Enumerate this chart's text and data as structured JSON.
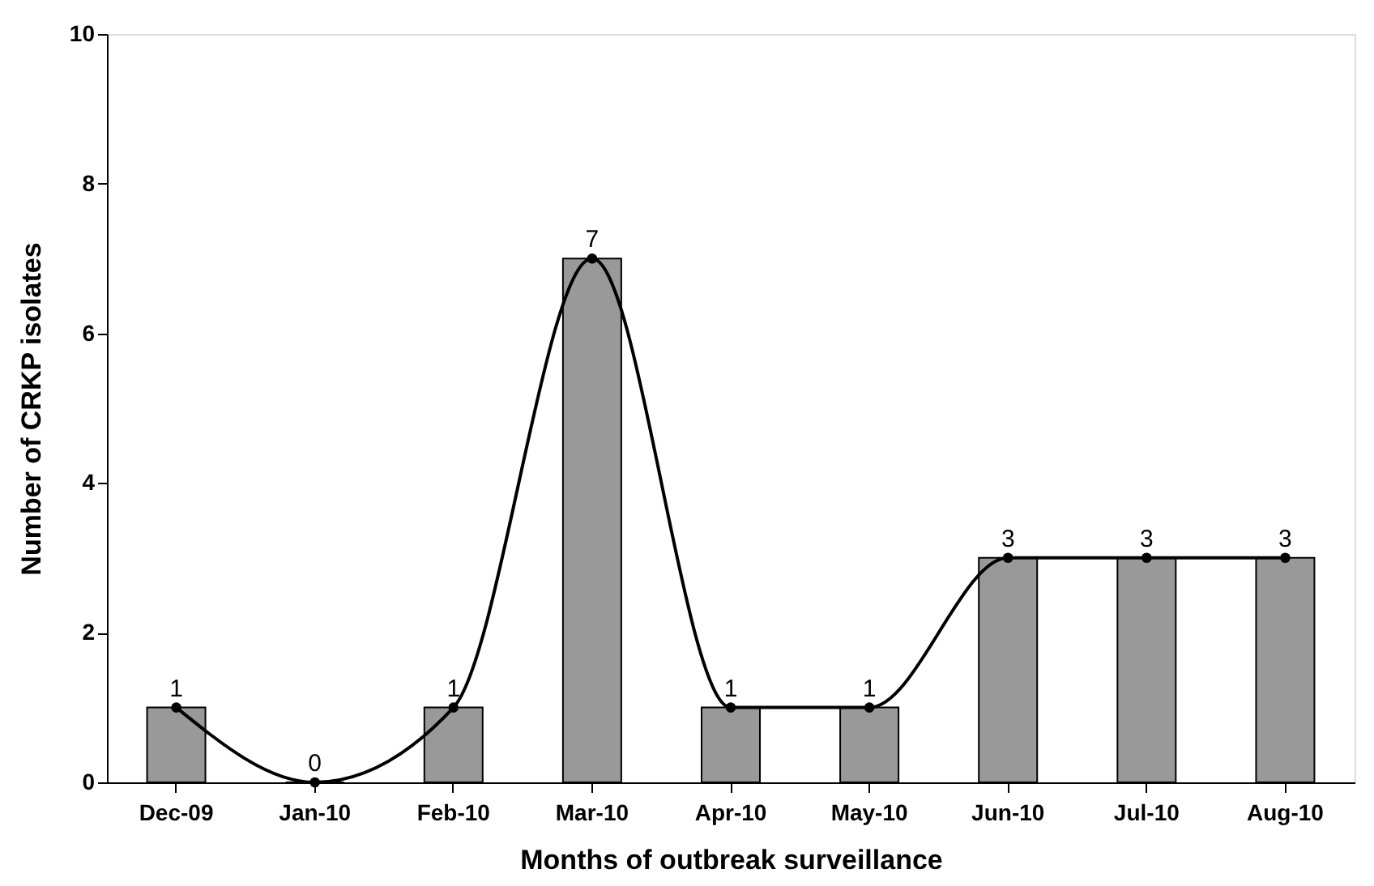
{
  "chart_data": {
    "type": "bar",
    "xlabel": "Months of outbreak surveillance",
    "ylabel": "Number of CRKP isolates",
    "categories": [
      "Dec-09",
      "Jan-10",
      "Feb-10",
      "Mar-10",
      "Apr-10",
      "May-10",
      "Jun-10",
      "Jul-10",
      "Aug-10"
    ],
    "series": [
      {
        "color": "#999999",
        "values": [
          1,
          0,
          1,
          7,
          1,
          1,
          3,
          3,
          3
        ],
        "value_labels": [
          "1",
          "0",
          "1",
          "7",
          "1",
          "1",
          "3",
          "3",
          "3"
        ]
      },
      {
        "type": "line",
        "color": "#000000",
        "marker": "circle",
        "values": [
          1,
          0,
          1,
          7,
          1,
          1,
          3,
          3,
          3
        ]
      }
    ],
    "ylim": [
      0,
      10
    ],
    "yticks": [
      0,
      2,
      4,
      6,
      8,
      10
    ],
    "grid": false
  }
}
